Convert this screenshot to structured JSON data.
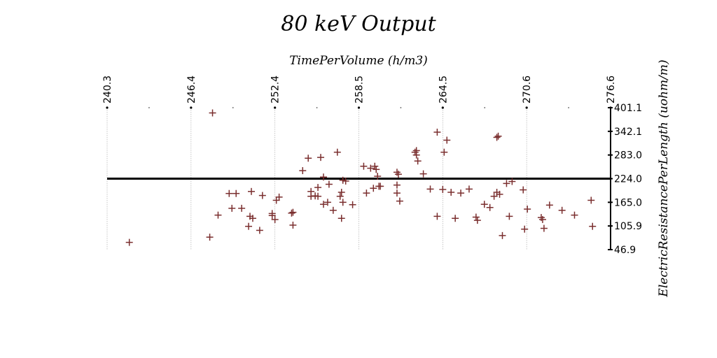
{
  "chart_data": {
    "type": "scatter",
    "title": "80 keV Output",
    "xlabel": "TimePerVolume (h/m3)",
    "ylabel": "ElectricResistancePerLength (uohm/m)",
    "xlim": [
      240.3,
      276.6
    ],
    "ylim": [
      46.9,
      401.1
    ],
    "x_ticks": [
      "240.3",
      "246.4",
      "252.4",
      "258.5",
      "264.5",
      "270.6",
      "276.6"
    ],
    "y_ticks": [
      "46.9",
      "105.9",
      "165.0",
      "224.0",
      "283.0",
      "342.1",
      "401.1"
    ],
    "reference_line_y": 224.0,
    "marker": "+",
    "marker_color": "#7a2e2e",
    "x_axis_position": "top",
    "y_axis_position": "right",
    "grid": "vertical dotted",
    "points": [
      [
        241.9,
        65
      ],
      [
        247.9,
        388
      ],
      [
        247.7,
        78
      ],
      [
        248.3,
        133
      ],
      [
        249.1,
        187
      ],
      [
        249.6,
        187
      ],
      [
        249.3,
        150
      ],
      [
        250.0,
        150
      ],
      [
        250.5,
        105
      ],
      [
        250.6,
        130
      ],
      [
        250.8,
        125
      ],
      [
        250.7,
        192
      ],
      [
        251.3,
        95
      ],
      [
        251.5,
        182
      ],
      [
        252.2,
        137
      ],
      [
        252.2,
        132
      ],
      [
        252.4,
        122
      ],
      [
        252.5,
        170
      ],
      [
        252.7,
        178
      ],
      [
        253.6,
        138
      ],
      [
        253.7,
        140
      ],
      [
        253.7,
        108
      ],
      [
        254.4,
        244
      ],
      [
        254.8,
        275
      ],
      [
        255.0,
        192
      ],
      [
        255.0,
        180
      ],
      [
        255.3,
        181
      ],
      [
        255.5,
        202
      ],
      [
        255.5,
        180
      ],
      [
        255.7,
        277
      ],
      [
        255.9,
        228
      ],
      [
        255.9,
        160
      ],
      [
        256.2,
        165
      ],
      [
        256.3,
        210
      ],
      [
        256.6,
        145
      ],
      [
        256.9,
        290
      ],
      [
        257.1,
        180
      ],
      [
        257.2,
        190
      ],
      [
        257.3,
        165
      ],
      [
        257.2,
        125
      ],
      [
        257.3,
        220
      ],
      [
        257.5,
        218
      ],
      [
        258.0,
        159
      ],
      [
        258.8,
        255
      ],
      [
        259.0,
        188
      ],
      [
        259.3,
        250
      ],
      [
        259.5,
        200
      ],
      [
        259.6,
        255
      ],
      [
        259.7,
        247
      ],
      [
        259.8,
        230
      ],
      [
        259.9,
        205
      ],
      [
        260.0,
        205
      ],
      [
        261.2,
        240
      ],
      [
        261.3,
        235
      ],
      [
        261.2,
        208
      ],
      [
        261.2,
        188
      ],
      [
        261.4,
        168
      ],
      [
        262.5,
        290
      ],
      [
        262.6,
        294
      ],
      [
        262.6,
        283
      ],
      [
        262.7,
        268
      ],
      [
        263.1,
        236
      ],
      [
        263.6,
        198
      ],
      [
        264.1,
        340
      ],
      [
        264.1,
        130
      ],
      [
        264.6,
        290
      ],
      [
        264.5,
        197
      ],
      [
        264.8,
        320
      ],
      [
        265.1,
        190
      ],
      [
        265.4,
        125
      ],
      [
        265.8,
        188
      ],
      [
        266.4,
        198
      ],
      [
        266.9,
        128
      ],
      [
        267.0,
        120
      ],
      [
        267.5,
        160
      ],
      [
        267.9,
        152
      ],
      [
        268.2,
        180
      ],
      [
        268.4,
        327
      ],
      [
        268.5,
        330
      ],
      [
        268.4,
        190
      ],
      [
        268.6,
        185
      ],
      [
        268.8,
        82
      ],
      [
        269.1,
        212
      ],
      [
        269.3,
        130
      ],
      [
        269.5,
        217
      ],
      [
        270.3,
        196
      ],
      [
        270.4,
        98
      ],
      [
        270.6,
        148
      ],
      [
        271.6,
        127
      ],
      [
        271.7,
        122
      ],
      [
        271.8,
        100
      ],
      [
        272.2,
        158
      ],
      [
        273.1,
        145
      ],
      [
        274.0,
        133
      ],
      [
        275.2,
        170
      ],
      [
        275.3,
        105
      ]
    ]
  }
}
